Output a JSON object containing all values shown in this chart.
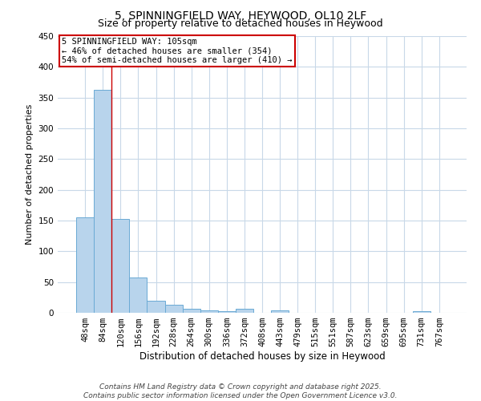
{
  "title": "5, SPINNINGFIELD WAY, HEYWOOD, OL10 2LF",
  "subtitle": "Size of property relative to detached houses in Heywood",
  "xlabel": "Distribution of detached houses by size in Heywood",
  "ylabel": "Number of detached properties",
  "categories": [
    "48sqm",
    "84sqm",
    "120sqm",
    "156sqm",
    "192sqm",
    "228sqm",
    "264sqm",
    "300sqm",
    "336sqm",
    "372sqm",
    "408sqm",
    "443sqm",
    "479sqm",
    "515sqm",
    "551sqm",
    "587sqm",
    "623sqm",
    "659sqm",
    "695sqm",
    "731sqm",
    "767sqm"
  ],
  "values": [
    155,
    362,
    153,
    57,
    20,
    13,
    6,
    4,
    3,
    6,
    0,
    4,
    0,
    0,
    0,
    0,
    0,
    0,
    0,
    3,
    0
  ],
  "bar_color": "#b8d4ec",
  "bar_edge_color": "#6aaad4",
  "red_line_x": 1.5,
  "annotation_line1": "5 SPINNINGFIELD WAY: 105sqm",
  "annotation_line2": "← 46% of detached houses are smaller (354)",
  "annotation_line3": "54% of semi-detached houses are larger (410) →",
  "annotation_box_color": "#ffffff",
  "annotation_border_color": "#cc0000",
  "footer_line1": "Contains HM Land Registry data © Crown copyright and database right 2025.",
  "footer_line2": "Contains public sector information licensed under the Open Government Licence v3.0.",
  "ylim": [
    0,
    450
  ],
  "yticks": [
    0,
    50,
    100,
    150,
    200,
    250,
    300,
    350,
    400,
    450
  ],
  "background_color": "#ffffff",
  "grid_color": "#c8d8e8",
  "title_fontsize": 10,
  "subtitle_fontsize": 9,
  "xlabel_fontsize": 8.5,
  "ylabel_fontsize": 8,
  "tick_fontsize": 7.5,
  "annotation_fontsize": 7.5,
  "footer_fontsize": 6.5
}
